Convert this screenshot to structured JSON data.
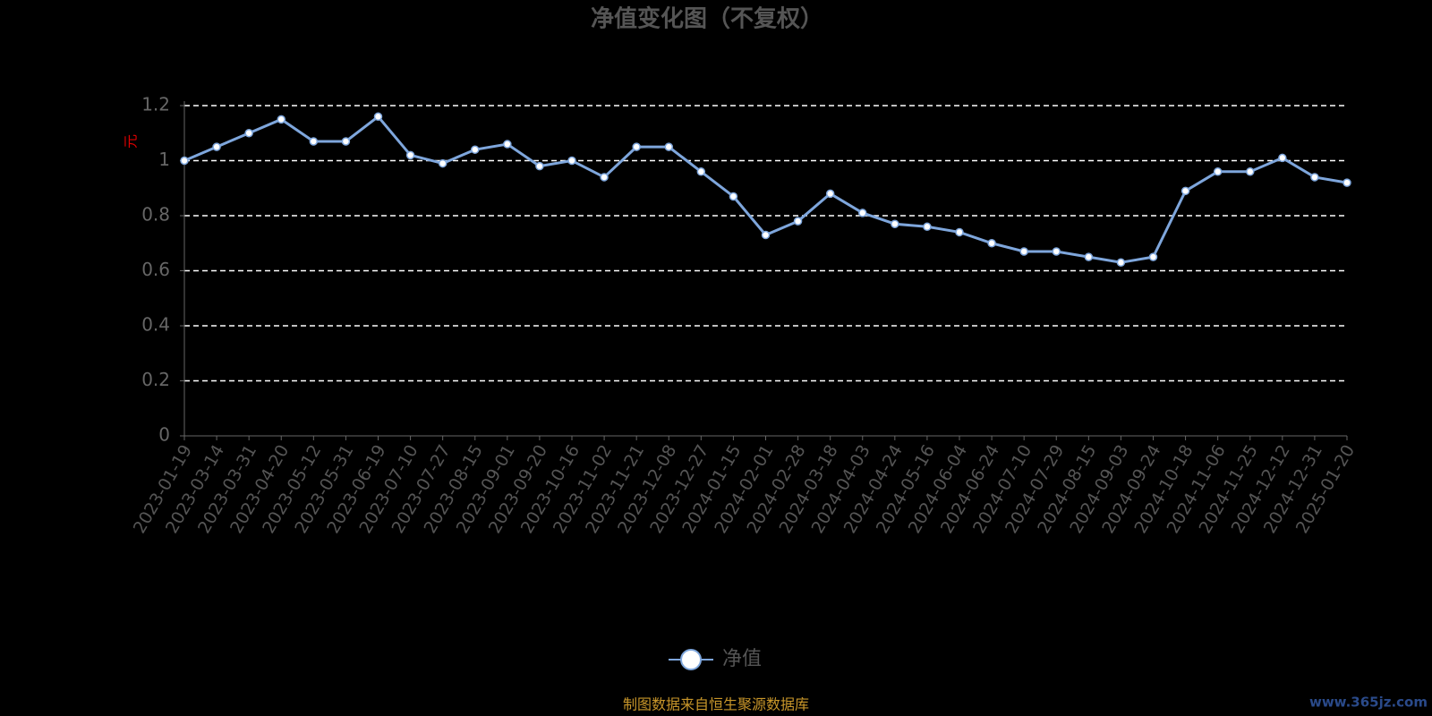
{
  "chart_data": {
    "type": "line",
    "title": "净值变化图（不复权）",
    "y_axis_label": "元",
    "categories": [
      "2023-01-19",
      "2023-03-14",
      "2023-03-31",
      "2023-04-20",
      "2023-05-12",
      "2023-05-31",
      "2023-06-19",
      "2023-07-10",
      "2023-07-27",
      "2023-08-15",
      "2023-09-01",
      "2023-09-20",
      "2023-10-16",
      "2023-11-02",
      "2023-11-21",
      "2023-12-08",
      "2023-12-27",
      "2024-01-15",
      "2024-02-01",
      "2024-02-28",
      "2024-03-18",
      "2024-04-03",
      "2024-04-24",
      "2024-05-16",
      "2024-06-04",
      "2024-06-24",
      "2024-07-10",
      "2024-07-29",
      "2024-08-15",
      "2024-09-03",
      "2024-09-24",
      "2024-10-18",
      "2024-11-06",
      "2024-11-25",
      "2024-12-12",
      "2024-12-31",
      "2025-01-20"
    ],
    "series": [
      {
        "name": "净值",
        "color": "#7ea6dc",
        "values": [
          1.0,
          1.05,
          1.1,
          1.15,
          1.07,
          1.07,
          1.16,
          1.02,
          0.99,
          1.04,
          1.06,
          0.98,
          1.0,
          0.94,
          1.05,
          1.05,
          0.96,
          0.87,
          0.73,
          0.78,
          0.88,
          0.81,
          0.77,
          0.76,
          0.74,
          0.7,
          0.67,
          0.67,
          0.65,
          0.63,
          0.65,
          0.89,
          0.96,
          0.96,
          1.01,
          0.94,
          0.92
        ]
      }
    ],
    "ylim": [
      0,
      1.2
    ],
    "yticks": [
      0,
      0.2,
      0.4,
      0.6,
      0.8,
      1,
      1.2
    ],
    "grid": true,
    "legend_position": "bottom",
    "source_note": "制图数据来自恒生聚源数据库",
    "watermark": "www.365jz.com"
  }
}
